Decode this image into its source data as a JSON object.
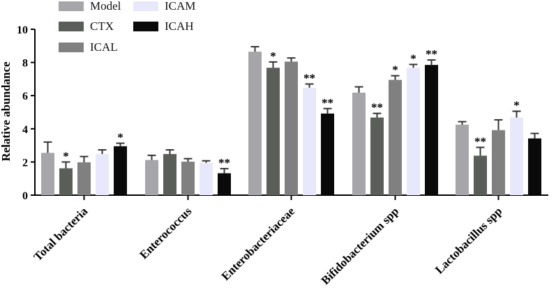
{
  "chart_data": {
    "type": "bar",
    "title": "",
    "xlabel": "",
    "ylabel": "Relative abundance",
    "ylim": [
      0,
      10
    ],
    "yticks": [
      "0",
      "2",
      "4",
      "6",
      "8",
      "10"
    ],
    "categories": [
      "Total bacteria",
      "Enterococcus",
      "Enterobacteriaceae",
      "Bifidobacterium spp",
      "Lactobacillus spp"
    ],
    "series": [
      {
        "name": "Model",
        "color": "#a6a6aa",
        "values": [
          2.55,
          2.12,
          8.65,
          6.18,
          4.25
        ],
        "errors": [
          0.65,
          0.28,
          0.3,
          0.35,
          0.18
        ],
        "annotations": [
          "",
          "",
          "",
          "",
          ""
        ]
      },
      {
        "name": "CTX",
        "color": "#5a5e58",
        "values": [
          1.62,
          2.48,
          7.68,
          4.68,
          2.38
        ],
        "errors": [
          0.38,
          0.25,
          0.35,
          0.25,
          0.5
        ],
        "annotations": [
          "*",
          "",
          "*",
          "**",
          "**"
        ]
      },
      {
        "name": "ICAL",
        "color": "#808080",
        "values": [
          1.98,
          2.02,
          8.05,
          6.95,
          3.92
        ],
        "errors": [
          0.35,
          0.18,
          0.22,
          0.25,
          0.62
        ],
        "annotations": [
          "",
          "",
          "",
          "*",
          ""
        ]
      },
      {
        "name": "ICAM",
        "color": "#e8e8fc",
        "values": [
          2.48,
          1.95,
          6.48,
          7.68,
          4.68
        ],
        "errors": [
          0.25,
          0.12,
          0.22,
          0.2,
          0.38
        ],
        "annotations": [
          "",
          "",
          "**",
          "*",
          "*"
        ]
      },
      {
        "name": "ICAH",
        "color": "#0a0a0a",
        "values": [
          2.95,
          1.32,
          4.92,
          7.85,
          3.42
        ],
        "errors": [
          0.18,
          0.28,
          0.3,
          0.3,
          0.3
        ],
        "annotations": [
          "*",
          "**",
          "**",
          "**",
          ""
        ]
      }
    ],
    "legend_position": "top-left"
  }
}
